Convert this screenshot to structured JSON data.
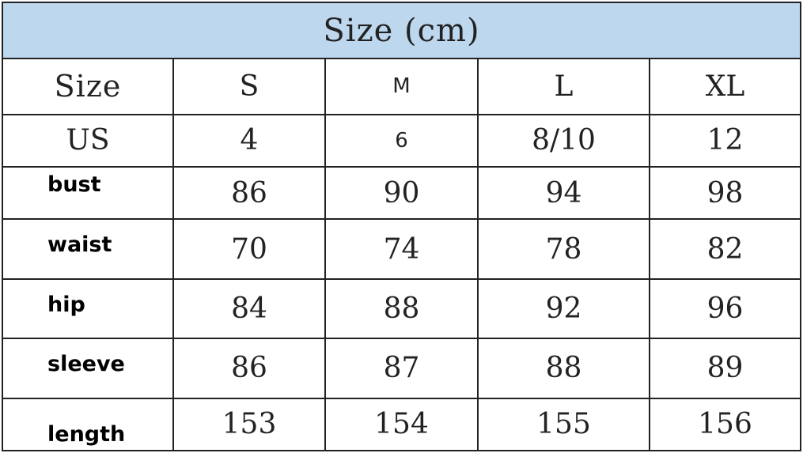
{
  "title": "Size (cm)",
  "header_color": "#bdd7ee",
  "columns": [
    "Size",
    "S",
    "M",
    "L",
    "XL"
  ],
  "rows": [
    {
      "label": "US",
      "values": [
        "4",
        "6",
        "8/10",
        "12"
      ]
    },
    {
      "label": "bust",
      "values": [
        "86",
        "90",
        "94",
        "98"
      ]
    },
    {
      "label": "waist",
      "values": [
        "70",
        "74",
        "78",
        "82"
      ]
    },
    {
      "label": "hip",
      "values": [
        "84",
        "88",
        "92",
        "96"
      ]
    },
    {
      "label": "sleeve",
      "values": [
        "86",
        "87",
        "88",
        "89"
      ]
    },
    {
      "label": "length",
      "values": [
        "153",
        "154",
        "155",
        "156"
      ]
    }
  ]
}
